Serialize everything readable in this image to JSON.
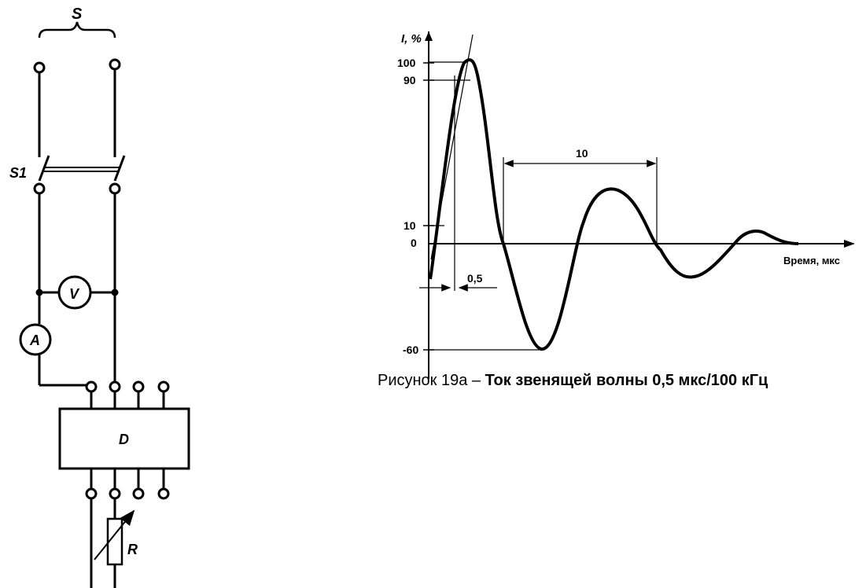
{
  "circuit": {
    "label_s": "S",
    "label_s1": "S1",
    "label_v": "V",
    "label_a": "A",
    "label_d": "D",
    "label_r": "R"
  },
  "waveform": {
    "y_axis_label": "I, %",
    "x_axis_label": "Время, мкс",
    "tick_100": "100",
    "tick_90": "90",
    "tick_10": "10",
    "tick_0": "0",
    "tick_neg60": "-60",
    "dim_period": "10",
    "dim_rise": "0,5"
  },
  "caption": {
    "prefix": "Рисунок 19а – ",
    "title": "Ток звенящей волны 0,5 мкс/100 кГц"
  }
}
